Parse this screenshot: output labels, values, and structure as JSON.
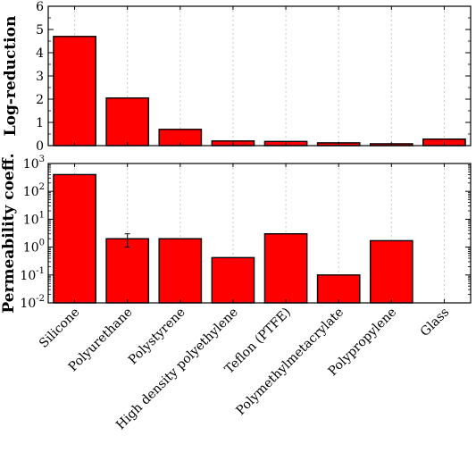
{
  "chart_data": [
    {
      "type": "bar",
      "ylabel": "Log-reduction",
      "ylim": [
        0,
        6
      ],
      "yticks": [
        0,
        1,
        2,
        3,
        4,
        5,
        6
      ],
      "categories": [
        "Silicone",
        "Polyurethane",
        "Polystyrene",
        "High density polyethylene",
        "Teflon (PTFE)",
        "Polymethylmetacrylate",
        "Polypropylene",
        "Glass"
      ],
      "values": [
        4.7,
        2.05,
        0.7,
        0.2,
        0.18,
        0.12,
        0.08,
        0.28
      ],
      "bar_color": "#ff0000",
      "grid": "vertical dotted"
    },
    {
      "type": "bar",
      "ylabel": "Permeability coeff.",
      "yscale": "log",
      "ylim": [
        0.01,
        1000
      ],
      "yticks": [
        0.01,
        0.1,
        1,
        10,
        100,
        1000
      ],
      "ytick_labels": [
        {
          "base": "10",
          "exp": "-2"
        },
        {
          "base": "10",
          "exp": "-1"
        },
        {
          "base": "10",
          "exp": "0"
        },
        {
          "base": "10",
          "exp": "1"
        },
        {
          "base": "10",
          "exp": "2"
        },
        {
          "base": "10",
          "exp": "3"
        }
      ],
      "categories": [
        "Silicone",
        "Polyurethane",
        "Polystyrene",
        "High density polyethylene",
        "Teflon (PTFE)",
        "Polymethylmetacrylate",
        "Polypropylene",
        "Glass"
      ],
      "values": [
        400,
        2.0,
        2.0,
        0.42,
        3.0,
        0.1,
        1.7,
        null
      ],
      "error_bars": [
        null,
        [
          1.0,
          3.0
        ],
        null,
        null,
        null,
        null,
        null,
        null
      ],
      "bar_color": "#ff0000",
      "grid": "vertical dotted"
    }
  ]
}
